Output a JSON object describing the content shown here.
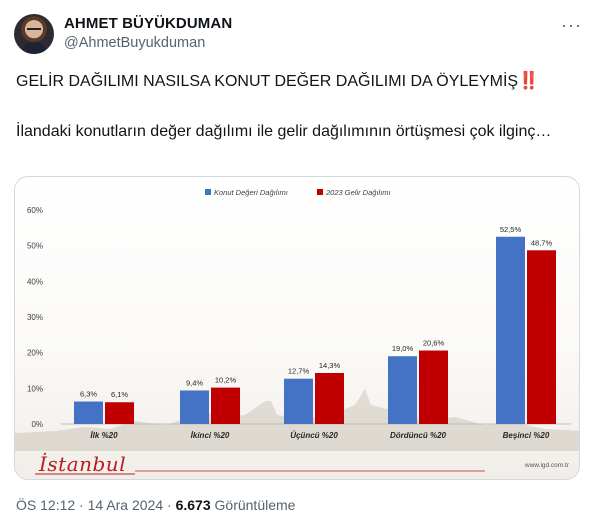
{
  "tweet": {
    "author_name": "AHMET BÜYÜKDUMAN",
    "author_handle": "@AhmetBuyukduman",
    "more_glyph": "···",
    "text_line1": "GELİR DAĞILIMI NASILSA KONUT DEĞER DAĞILIMI DA ÖYLEYMİŞ",
    "text_mark": "‼️",
    "text_line2": "İlandaki konutların değer dağılımı ile gelir dağılımının örtüşmesi çok ilginç…",
    "time": "ÖS 12:12",
    "date": "14 Ara 2024",
    "separator": "·",
    "views_count": "6.673",
    "views_label": "Görüntüleme"
  },
  "media": {
    "brand_logo_text": "İstanbul",
    "source_text": "www.igd.com.tr"
  },
  "chart_data": {
    "type": "bar",
    "categories": [
      "İlk %20",
      "İkinci %20",
      "Üçüncü %20",
      "Dördüncü %20",
      "Beşinci %20"
    ],
    "series": [
      {
        "name": "Konut Değeri Dağılımı",
        "color": "#4472c4",
        "values": [
          6.3,
          9.4,
          12.7,
          19.0,
          52.5
        ],
        "labels": [
          "6,3%",
          "9,4%",
          "12,7%",
          "19,0%",
          "52,5%"
        ]
      },
      {
        "name": "2023 Gelir Dağılımı",
        "color": "#c00000",
        "values": [
          6.1,
          10.2,
          14.3,
          20.6,
          48.7
        ],
        "labels": [
          "6,1%",
          "10,2%",
          "14,3%",
          "20,6%",
          "48,7%"
        ]
      }
    ],
    "yticks": [
      0,
      10,
      20,
      30,
      40,
      50,
      60
    ],
    "ytick_labels": [
      "0%",
      "10%",
      "20%",
      "30%",
      "40%",
      "50%",
      "60%"
    ],
    "ylim": [
      0,
      60
    ],
    "grid": false,
    "legend": "top-center"
  }
}
